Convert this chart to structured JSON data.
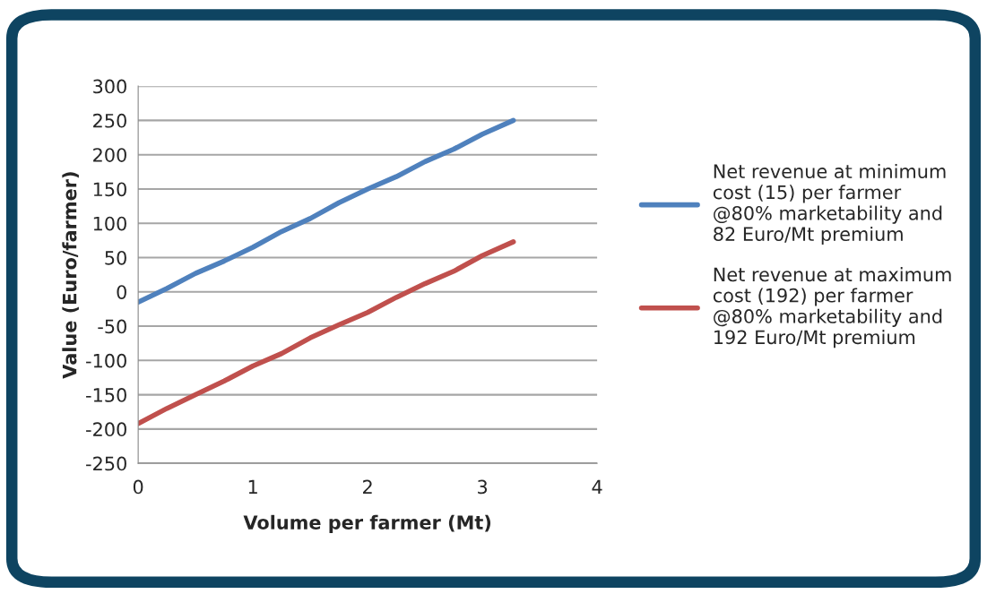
{
  "chart_data": {
    "type": "line",
    "xlabel": "Volume per farmer (Mt)",
    "ylabel": "Value (Euro/farmer)",
    "xlim": [
      0,
      4
    ],
    "xticks": [
      0,
      1,
      2,
      3,
      4
    ],
    "ylim": [
      -250,
      300
    ],
    "yticks": [
      -250,
      -200,
      -150,
      -100,
      -50,
      0,
      50,
      100,
      150,
      200,
      250,
      300
    ],
    "grid": "y",
    "legend": "right",
    "marker": "none",
    "line_style": "solid",
    "series": [
      {
        "name": "Net revenue at minimum\ncost (15) per farmer\n@80% marketability and\n82 Euro/Mt premium",
        "color": "#4f81bd",
        "x": [
          0,
          0.25,
          0.5,
          0.75,
          1,
          1.25,
          1.5,
          1.75,
          2,
          2.25,
          2.5,
          2.75,
          3,
          3.27
        ],
        "values": [
          -15,
          5,
          27,
          45,
          65,
          88,
          107,
          130,
          150,
          168,
          190,
          208,
          230,
          250
        ]
      },
      {
        "name": "Net revenue at maximum\ncost (192) per farmer\n@80% marketability and\n192 Euro/Mt premium",
        "color": "#c0504d",
        "x": [
          0,
          0.25,
          0.5,
          0.75,
          1,
          1.25,
          1.5,
          1.75,
          2,
          2.25,
          2.5,
          2.75,
          3,
          3.27
        ],
        "values": [
          -192,
          -170,
          -150,
          -130,
          -108,
          -90,
          -67,
          -48,
          -30,
          -8,
          12,
          30,
          53,
          73
        ]
      }
    ]
  }
}
